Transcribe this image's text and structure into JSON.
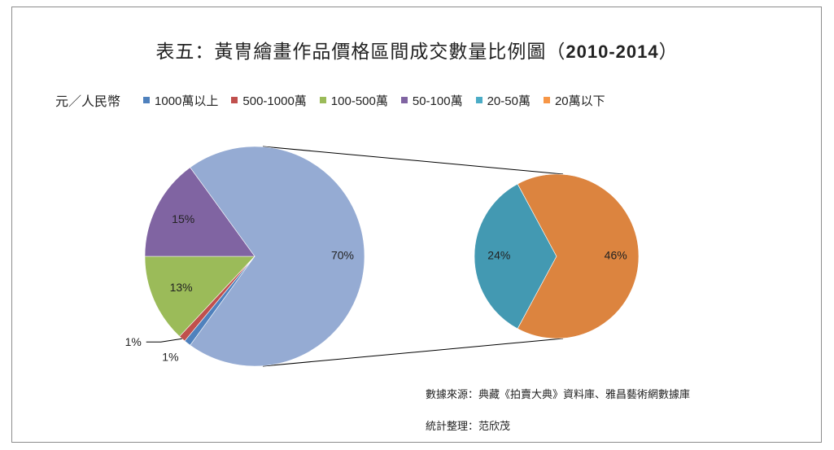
{
  "title": {
    "main": "表五：黃冑繪畫作品價格區間成交數量比例圖（",
    "years": "2010-2014",
    "close": "）"
  },
  "legend": {
    "unit": "元／人民幣",
    "items": [
      {
        "label": "1000萬以上",
        "color": "#4f81bd"
      },
      {
        "label": "500-1000萬",
        "color": "#c0504d"
      },
      {
        "label": "100-500萬",
        "color": "#9bbb59"
      },
      {
        "label": "50-100萬",
        "color": "#8064a2"
      },
      {
        "label": "20-50萬",
        "color": "#4bacc6"
      },
      {
        "label": "20萬以下",
        "color": "#f79646"
      }
    ]
  },
  "chart_data": {
    "type": "pie",
    "subtype": "pie-of-pie",
    "main_pie": [
      {
        "name": "1000萬以上",
        "value": 1,
        "label": "1%",
        "color": "#4f81bd"
      },
      {
        "name": "500-1000萬",
        "value": 1,
        "label": "1%",
        "color": "#c0504d"
      },
      {
        "name": "100-500萬",
        "value": 13,
        "label": "13%",
        "color": "#9bbb59"
      },
      {
        "name": "50-100萬",
        "value": 15,
        "label": "15%",
        "color": "#8064a2"
      },
      {
        "name": "20萬以下 + 20-50萬",
        "value": 70,
        "label": "70%",
        "color": "#95abd3"
      }
    ],
    "secondary_pie": [
      {
        "name": "20-50萬",
        "value": 24,
        "label": "24%",
        "color": "#4399b2"
      },
      {
        "name": "20萬以下",
        "value": 46,
        "label": "46%",
        "color": "#dc843f"
      }
    ]
  },
  "source": "數據來源：典藏《拍賣大典》資料庫、雅昌藝術網數據庫",
  "compiler": "統計整理：范欣茂"
}
